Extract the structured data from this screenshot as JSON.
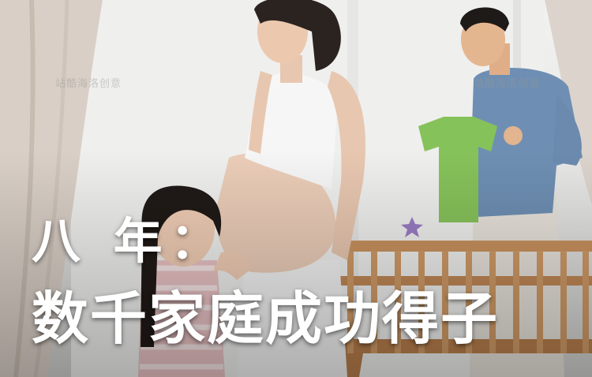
{
  "headline": {
    "line1": "八 年：",
    "line2": "数千家庭成功得子"
  },
  "watermarks": [
    "站酷海洛创意",
    "站酷海洛创意"
  ],
  "colors": {
    "headline_text": "#ffffff",
    "background": "#e9e9e8",
    "tshirt_green": "#86c25a",
    "man_shirt": "#6e8fb3",
    "crib_wood": "#c9925e"
  },
  "photo_subjects": [
    "pregnant-woman",
    "girl",
    "man",
    "green-baby-shirt",
    "wooden-crib",
    "curtains"
  ]
}
